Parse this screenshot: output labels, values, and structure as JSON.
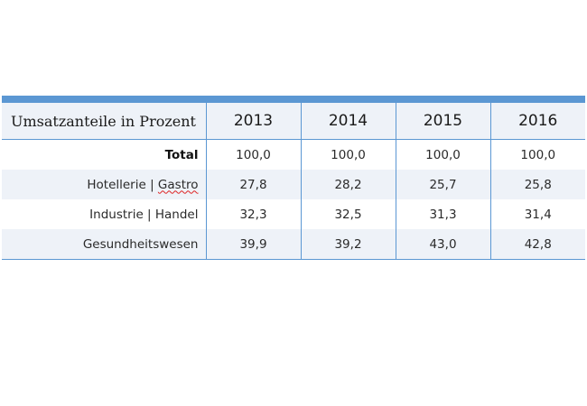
{
  "table": {
    "header_label": "Umsatzanteile in Prozent",
    "years": [
      "2013",
      "2014",
      "2015",
      "2016"
    ],
    "rows": [
      {
        "label": "Total",
        "values": [
          "100,0",
          "100,0",
          "100,0",
          "100,0"
        ]
      },
      {
        "label_a": "Hotellerie | ",
        "label_b": "Gastro",
        "values": [
          "27,8",
          "28,2",
          "25,7",
          "25,8"
        ]
      },
      {
        "label": "Industrie | Handel",
        "values": [
          "32,3",
          "32,5",
          "31,3",
          "31,4"
        ]
      },
      {
        "label": "Gesundheitswesen",
        "values": [
          "39,9",
          "39,2",
          "43,0",
          "42,8"
        ]
      }
    ]
  },
  "colors": {
    "accent": "#5b97d3",
    "row_shade": "#eef2f8"
  }
}
